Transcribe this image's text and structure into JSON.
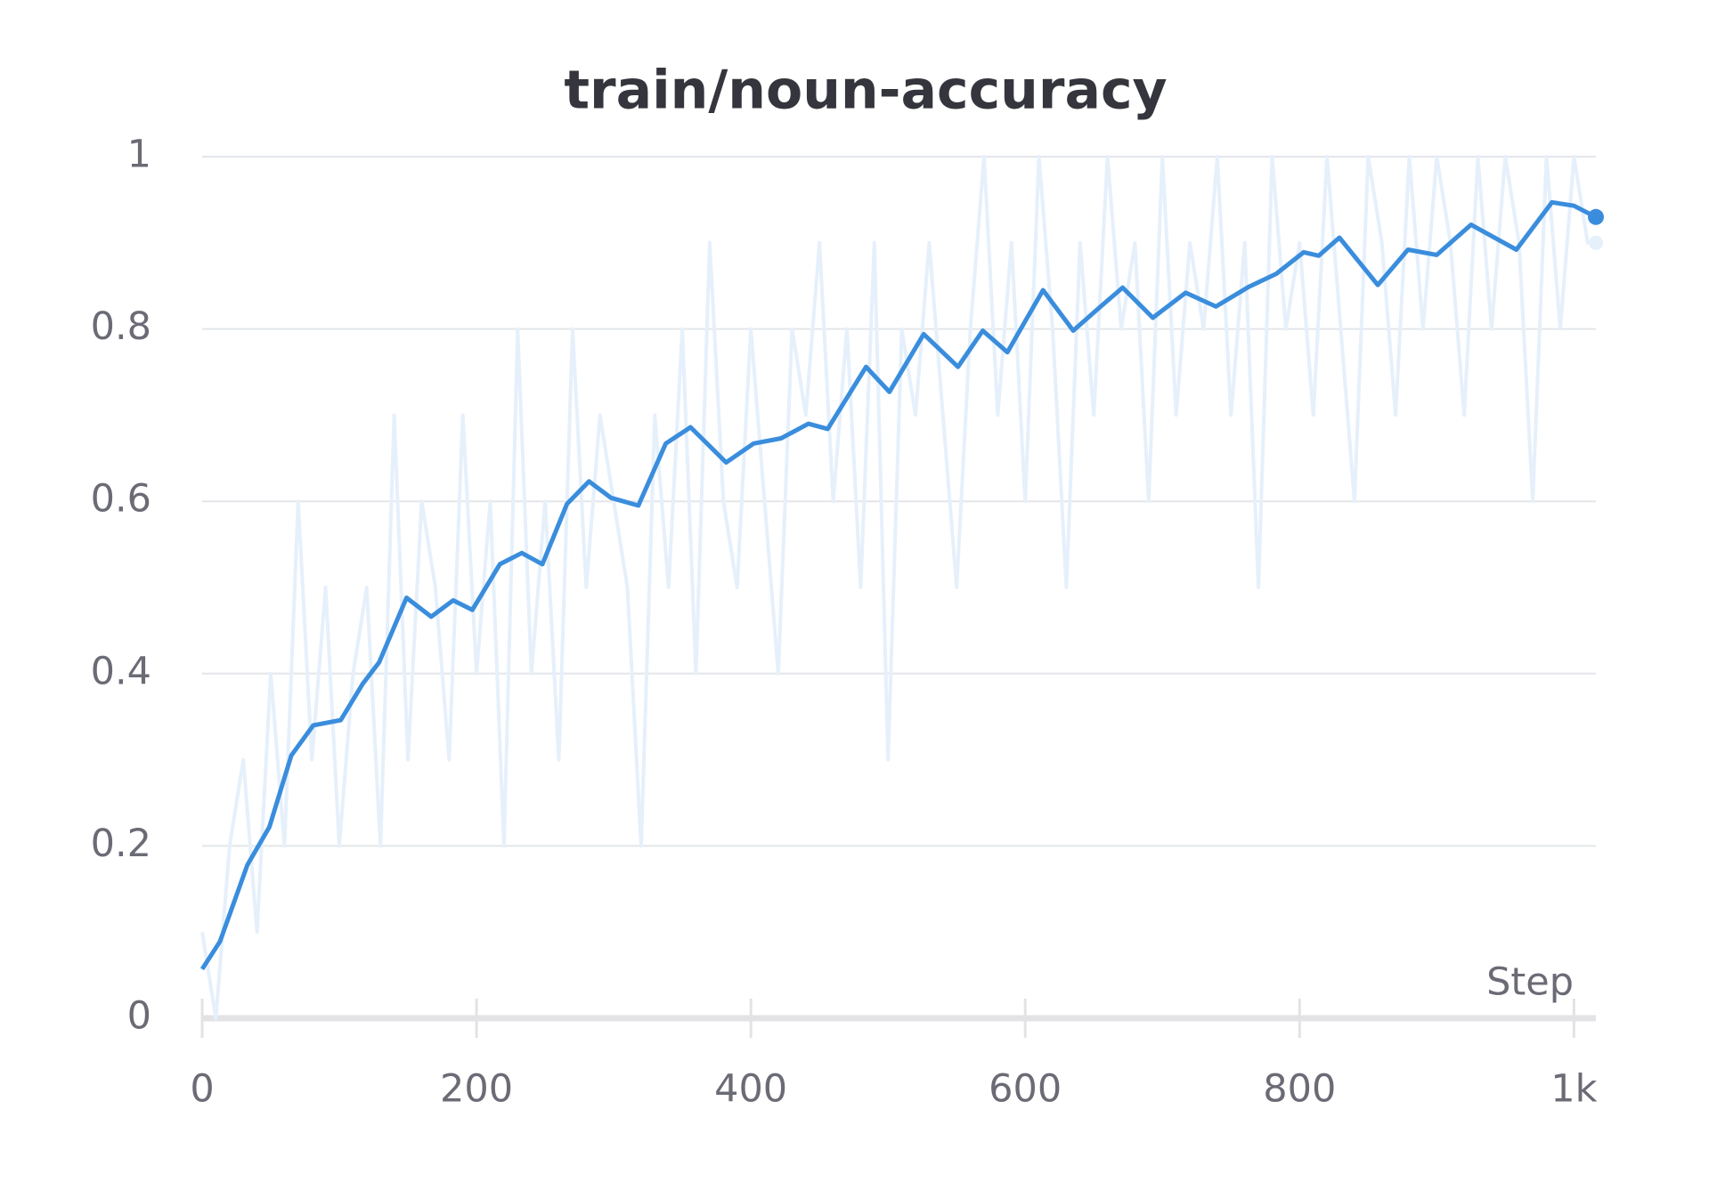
{
  "chart_data": {
    "type": "line",
    "title": "train/noun-accuracy",
    "x_label": "Step",
    "xlim": [
      0,
      1016
    ],
    "xticks": [
      0,
      200,
      400,
      600,
      800,
      {
        "value": 1000,
        "label": "1k"
      }
    ],
    "ylim": [
      0,
      1
    ],
    "yticks": [
      0,
      0.2,
      0.4,
      0.6,
      0.8,
      1
    ],
    "grid": true,
    "series": [
      {
        "color": "#e6f0fb",
        "x": [
          0,
          10,
          20,
          30,
          40,
          50,
          60,
          70,
          80,
          90,
          100,
          110,
          120,
          130,
          140,
          150,
          160,
          170,
          180,
          190,
          200,
          210,
          220,
          230,
          240,
          250,
          260,
          270,
          280,
          290,
          300,
          310,
          320,
          330,
          340,
          350,
          360,
          370,
          380,
          390,
          400,
          410,
          420,
          430,
          440,
          450,
          460,
          470,
          480,
          490,
          500,
          510,
          520,
          530,
          540,
          550,
          560,
          570,
          580,
          590,
          600,
          610,
          620,
          630,
          640,
          650,
          660,
          670,
          680,
          690,
          700,
          710,
          720,
          730,
          740,
          750,
          760,
          770,
          780,
          790,
          800,
          810,
          820,
          830,
          840,
          850,
          860,
          870,
          880,
          890,
          900,
          910,
          920,
          930,
          940,
          950,
          960,
          970,
          980,
          990,
          1000,
          1010,
          1016
        ],
        "values": [
          0.1,
          0,
          0.2,
          0.3,
          0.1,
          0.4,
          0.2,
          0.6,
          0.3,
          0.5,
          0.2,
          0.4,
          0.5,
          0.2,
          0.7,
          0.3,
          0.6,
          0.5,
          0.3,
          0.7,
          0.4,
          0.6,
          0.2,
          0.8,
          0.4,
          0.6,
          0.3,
          0.8,
          0.5,
          0.7,
          0.6,
          0.5,
          0.2,
          0.7,
          0.5,
          0.8,
          0.4,
          0.9,
          0.6,
          0.5,
          0.8,
          0.6,
          0.4,
          0.8,
          0.7,
          0.9,
          0.6,
          0.8,
          0.5,
          0.9,
          0.3,
          0.8,
          0.7,
          0.9,
          0.7,
          0.5,
          0.8,
          1,
          0.7,
          0.9,
          0.6,
          1,
          0.8,
          0.5,
          0.9,
          0.7,
          1,
          0.8,
          0.9,
          0.6,
          1,
          0.7,
          0.9,
          0.8,
          1,
          0.7,
          0.9,
          0.5,
          1,
          0.8,
          0.9,
          0.7,
          1,
          0.8,
          0.6,
          1,
          0.9,
          0.7,
          1,
          0.8,
          1,
          0.9,
          0.7,
          1,
          0.8,
          1,
          0.9,
          0.6,
          1,
          0.8,
          1,
          0.9,
          0.9
        ]
      },
      {
        "color": "#3a8ddc",
        "x": [
          0,
          13,
          33,
          49,
          65,
          81,
          101,
          117,
          129,
          149,
          167,
          183,
          197,
          217,
          233,
          248,
          266,
          282,
          298,
          318,
          338,
          356,
          382,
          402,
          422,
          442,
          456,
          484,
          501,
          526,
          551,
          569,
          587,
          613,
          635,
          655,
          671,
          693,
          717,
          739,
          763,
          783,
          803,
          814,
          829,
          857,
          879,
          900,
          925,
          958,
          984,
          1000,
          1016
        ],
        "values": [
          0.057,
          0.089,
          0.178,
          0.222,
          0.305,
          0.34,
          0.346,
          0.388,
          0.413,
          0.488,
          0.466,
          0.485,
          0.474,
          0.527,
          0.54,
          0.527,
          0.597,
          0.623,
          0.604,
          0.595,
          0.667,
          0.686,
          0.645,
          0.667,
          0.673,
          0.69,
          0.684,
          0.756,
          0.727,
          0.794,
          0.756,
          0.798,
          0.773,
          0.845,
          0.798,
          0.826,
          0.848,
          0.813,
          0.842,
          0.826,
          0.849,
          0.864,
          0.889,
          0.885,
          0.906,
          0.851,
          0.892,
          0.886,
          0.921,
          0.892,
          0.947,
          0.943,
          0.93
        ]
      }
    ]
  }
}
